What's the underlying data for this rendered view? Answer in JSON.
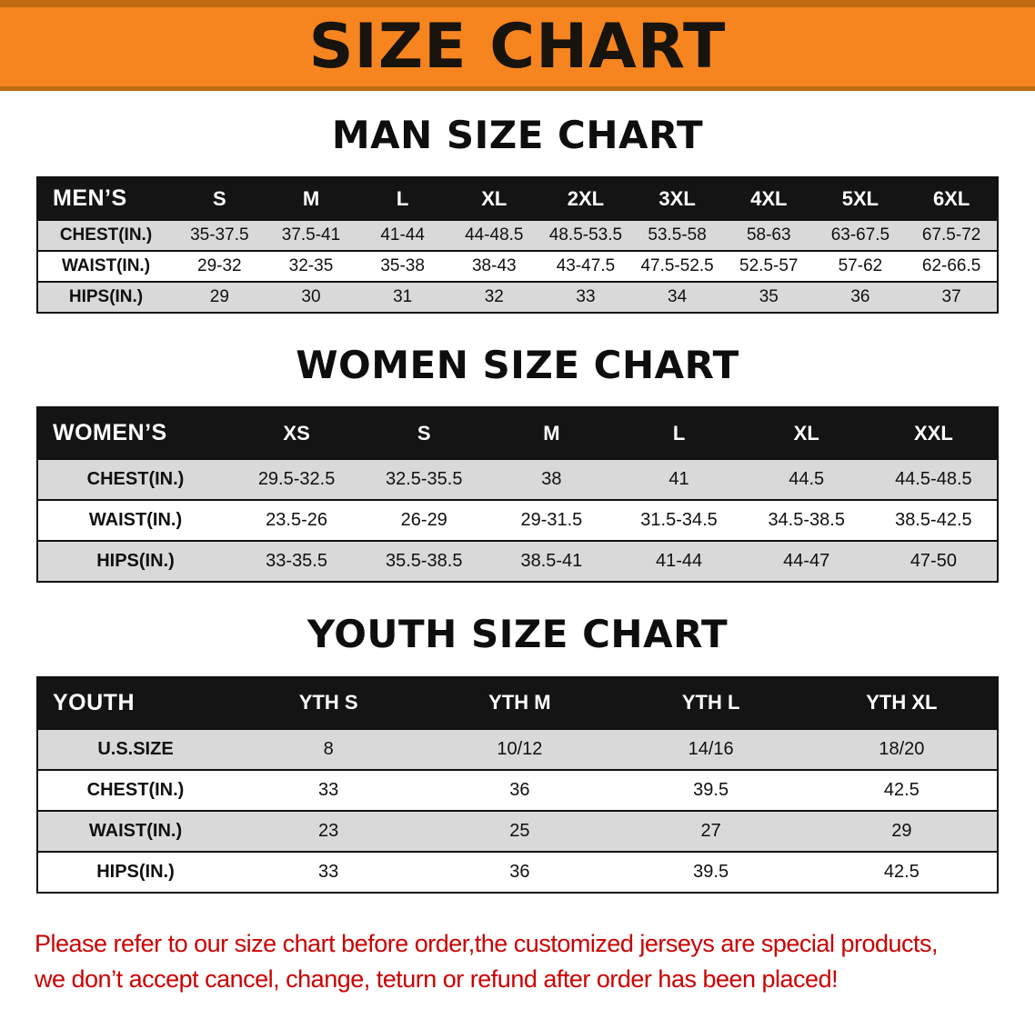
{
  "banner": {
    "title": "SIZE CHART",
    "bg_color": "#F6851F",
    "text_color": "#17130D"
  },
  "sections": [
    {
      "id": "men",
      "heading": "MAN SIZE CHART",
      "table": {
        "header": [
          "MEN’S",
          "S",
          "M",
          "L",
          "XL",
          "2XL",
          "3XL",
          "4XL",
          "5XL",
          "6XL"
        ],
        "rows": [
          [
            "CHEST(IN.)",
            "35-37.5",
            "37.5-41",
            "41-44",
            "44-48.5",
            "48.5-53.5",
            "53.5-58",
            "58-63",
            "63-67.5",
            "67.5-72"
          ],
          [
            "WAIST(IN.)",
            "29-32",
            "32-35",
            "35-38",
            "38-43",
            "43-47.5",
            "47.5-52.5",
            "52.5-57",
            "57-62",
            "62-66.5"
          ],
          [
            "HIPS(IN.)",
            "29",
            "30",
            "31",
            "32",
            "33",
            "34",
            "35",
            "36",
            "37"
          ]
        ]
      }
    },
    {
      "id": "women",
      "heading": "WOMEN SIZE CHART",
      "table": {
        "header": [
          "WOMEN’S",
          "XS",
          "S",
          "M",
          "L",
          "XL",
          "XXL"
        ],
        "rows": [
          [
            "CHEST(IN.)",
            "29.5-32.5",
            "32.5-35.5",
            "38",
            "41",
            "44.5",
            "44.5-48.5"
          ],
          [
            "WAIST(IN.)",
            "23.5-26",
            "26-29",
            "29-31.5",
            "31.5-34.5",
            "34.5-38.5",
            "38.5-42.5"
          ],
          [
            "HIPS(IN.)",
            "33-35.5",
            "35.5-38.5",
            "38.5-41",
            "41-44",
            "44-47",
            "47-50"
          ]
        ]
      }
    },
    {
      "id": "youth",
      "heading": "YOUTH SIZE CHART",
      "table": {
        "header": [
          "YOUTH",
          "YTH S",
          "YTH M",
          "YTH L",
          "YTH XL"
        ],
        "rows": [
          [
            "U.S.SIZE",
            "8",
            "10/12",
            "14/16",
            "18/20"
          ],
          [
            "CHEST(IN.)",
            "33",
            "36",
            "39.5",
            "42.5"
          ],
          [
            "WAIST(IN.)",
            "23",
            "25",
            "27",
            "29"
          ],
          [
            "HIPS(IN.)",
            "33",
            "36",
            "39.5",
            "42.5"
          ]
        ]
      }
    }
  ],
  "footer": {
    "line1": "Please refer to our size chart before order,the customized jerseys are special products,",
    "line2": "we don’t accept cancel, change, teturn or refund after order has been placed!",
    "text_color": "#CC0000"
  },
  "colors": {
    "table_header_bg": "#141414",
    "table_row_alt_bg": "#D9D9D9",
    "table_border": "#111111"
  }
}
